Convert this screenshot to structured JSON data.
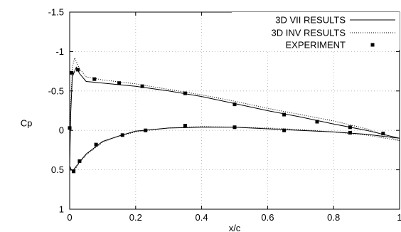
{
  "chart_data": {
    "type": "line",
    "title": "",
    "xlabel": "x/c",
    "ylabel": "Cp",
    "xlim": [
      0,
      1
    ],
    "ylim": [
      -1.5,
      1
    ],
    "y_axis_inverted": true,
    "grid": true,
    "grid_style": "dotted",
    "legend_position": "top-right",
    "x_ticks": [
      0,
      0.2,
      0.4,
      0.6,
      0.8,
      1
    ],
    "x_tick_labels": [
      "0",
      "0.2",
      "0.4",
      "0.6",
      "0.8",
      "1"
    ],
    "y_ticks": [
      -1.5,
      -1,
      -0.5,
      0,
      0.5,
      1
    ],
    "y_tick_labels": [
      "-1.5",
      "-1",
      "-0.5",
      "0",
      "0.5",
      "1"
    ],
    "series": [
      {
        "name": "3D VII RESULTS",
        "style": "solid",
        "upper": [
          [
            0,
            0.45
          ],
          [
            0.003,
            -0.2
          ],
          [
            0.008,
            -0.68
          ],
          [
            0.02,
            -0.8
          ],
          [
            0.03,
            -0.72
          ],
          [
            0.05,
            -0.62
          ],
          [
            0.1,
            -0.6
          ],
          [
            0.2,
            -0.56
          ],
          [
            0.3,
            -0.5
          ],
          [
            0.4,
            -0.43
          ],
          [
            0.5,
            -0.34
          ],
          [
            0.6,
            -0.25
          ],
          [
            0.7,
            -0.17
          ],
          [
            0.8,
            -0.08
          ],
          [
            0.9,
            0.0
          ],
          [
            1.0,
            0.1
          ]
        ],
        "lower": [
          [
            0,
            0.45
          ],
          [
            0.005,
            0.5
          ],
          [
            0.01,
            0.51
          ],
          [
            0.03,
            0.4
          ],
          [
            0.05,
            0.3
          ],
          [
            0.1,
            0.14
          ],
          [
            0.15,
            0.07
          ],
          [
            0.2,
            0.01
          ],
          [
            0.3,
            -0.03
          ],
          [
            0.4,
            -0.04
          ],
          [
            0.5,
            -0.04
          ],
          [
            0.6,
            -0.02
          ],
          [
            0.7,
            0.0
          ],
          [
            0.8,
            0.02
          ],
          [
            0.9,
            0.05
          ],
          [
            1.0,
            0.1
          ]
        ]
      },
      {
        "name": "3D INV RESULTS",
        "style": "dotted",
        "upper": [
          [
            0,
            0.45
          ],
          [
            0.003,
            -0.3
          ],
          [
            0.008,
            -0.8
          ],
          [
            0.015,
            -0.92
          ],
          [
            0.03,
            -0.78
          ],
          [
            0.05,
            -0.68
          ],
          [
            0.1,
            -0.64
          ],
          [
            0.2,
            -0.59
          ],
          [
            0.3,
            -0.52
          ],
          [
            0.4,
            -0.45
          ],
          [
            0.5,
            -0.37
          ],
          [
            0.6,
            -0.28
          ],
          [
            0.7,
            -0.2
          ],
          [
            0.8,
            -0.12
          ],
          [
            0.9,
            -0.02
          ],
          [
            1.0,
            0.13
          ]
        ],
        "lower": [
          [
            0,
            0.45
          ],
          [
            0.005,
            0.52
          ],
          [
            0.01,
            0.53
          ],
          [
            0.03,
            0.41
          ],
          [
            0.05,
            0.31
          ],
          [
            0.1,
            0.15
          ],
          [
            0.15,
            0.07
          ],
          [
            0.2,
            0.02
          ],
          [
            0.3,
            -0.03
          ],
          [
            0.4,
            -0.05
          ],
          [
            0.5,
            -0.04
          ],
          [
            0.6,
            -0.03
          ],
          [
            0.7,
            -0.01
          ],
          [
            0.8,
            0.02
          ],
          [
            0.9,
            0.06
          ],
          [
            1.0,
            0.13
          ]
        ]
      },
      {
        "name": "EXPERIMENT",
        "style": "markers",
        "points": [
          [
            0,
            -0.03
          ],
          [
            0.006,
            -0.73
          ],
          [
            0.012,
            0.52
          ],
          [
            0.025,
            -0.77
          ],
          [
            0.03,
            0.39
          ],
          [
            0.075,
            -0.65
          ],
          [
            0.08,
            0.18
          ],
          [
            0.15,
            -0.6
          ],
          [
            0.16,
            0.06
          ],
          [
            0.22,
            -0.56
          ],
          [
            0.23,
            0.0
          ],
          [
            0.35,
            -0.47
          ],
          [
            0.35,
            -0.06
          ],
          [
            0.5,
            -0.33
          ],
          [
            0.5,
            -0.04
          ],
          [
            0.65,
            -0.2
          ],
          [
            0.65,
            0.0
          ],
          [
            0.75,
            -0.11
          ],
          [
            0.85,
            -0.04
          ],
          [
            0.85,
            0.03
          ],
          [
            0.95,
            0.04
          ]
        ]
      }
    ]
  }
}
